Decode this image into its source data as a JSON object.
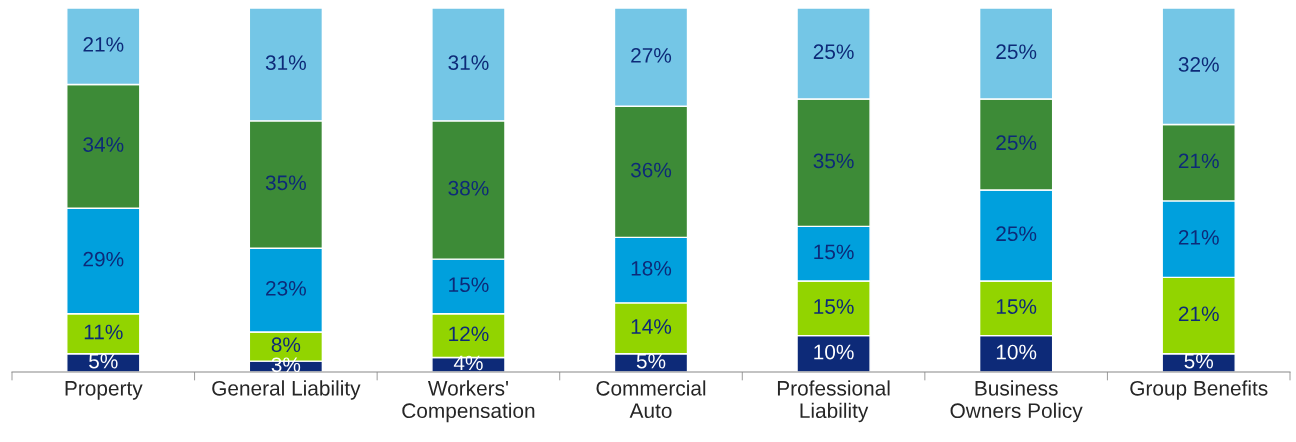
{
  "chart_data": {
    "type": "bar",
    "stacked": true,
    "categories": [
      "Property",
      "General Liability",
      "Workers'\nCompensation",
      "Commercial\nAuto",
      "Professional\nLiability",
      "Business\nOwners Policy",
      "Group Benefits"
    ],
    "series": [
      {
        "color": "#0d2a78",
        "values": [
          5,
          3,
          4,
          5,
          10,
          10,
          5
        ],
        "value_labels": [
          "5%",
          "3%",
          "4%",
          "5%",
          "10%",
          "10%",
          "5%"
        ]
      },
      {
        "color": "#92d400",
        "values": [
          11,
          8,
          12,
          14,
          15,
          15,
          21
        ],
        "value_labels": [
          "11%",
          "8%",
          "12%",
          "14%",
          "15%",
          "15%",
          "21%"
        ]
      },
      {
        "color": "#00a0dd",
        "values": [
          29,
          23,
          15,
          18,
          15,
          25,
          21
        ],
        "value_labels": [
          "29%",
          "23%",
          "15%",
          "18%",
          "15%",
          "25%",
          "21%"
        ]
      },
      {
        "color": "#3d8b37",
        "values": [
          34,
          35,
          38,
          36,
          35,
          25,
          21
        ],
        "value_labels": [
          "34%",
          "35%",
          "38%",
          "36%",
          "35%",
          "25%",
          "21%"
        ]
      },
      {
        "color": "#74c6e6",
        "values": [
          21,
          31,
          31,
          27,
          25,
          25,
          32
        ],
        "value_labels": [
          "21%",
          "31%",
          "31%",
          "27%",
          "25%",
          "25%",
          "32%"
        ]
      }
    ]
  }
}
